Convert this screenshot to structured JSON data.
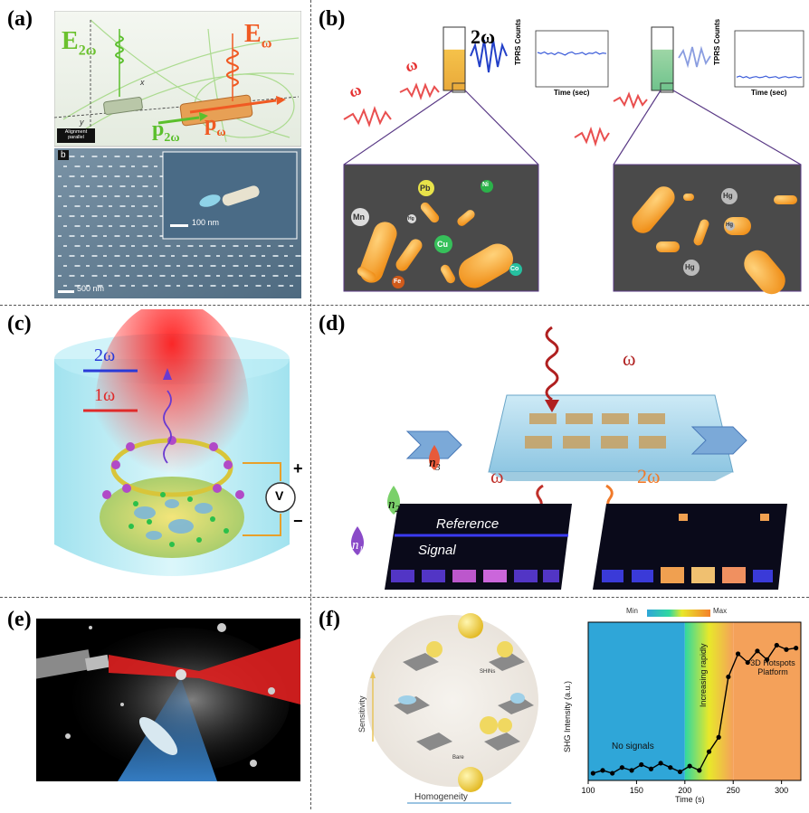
{
  "panels": {
    "a": {
      "label": "(a)",
      "e_2w": "E",
      "e_2w_sub": "2ω",
      "e_w": "E",
      "e_w_sub": "ω",
      "p_2w": "p",
      "p_2w_sub": "2ω",
      "p_w": "p",
      "p_w_sub": "ω",
      "axis_x": "x",
      "axis_y": "y",
      "alignment_tag": "Alignment parallel",
      "sem_tag": "b",
      "scale_main": "500 nm",
      "scale_inset": "100 nm"
    },
    "b": {
      "label": "(b)",
      "omega1": "ω",
      "omega2": "ω",
      "two_omega": "2ω",
      "chart_left_ylabel": "TPRS Counts",
      "chart_left_xlabel": "Time (sec)",
      "chart_right_ylabel": "TPRS Counts",
      "chart_right_xlabel": "Time (sec)",
      "ions_left": [
        "Pb",
        "Ni",
        "Mn",
        "Hg",
        "Cu",
        "Co",
        "Fe"
      ],
      "ions_right": [
        "Hg",
        "Hg",
        "Hg"
      ]
    },
    "c": {
      "label": "(c)",
      "two_omega": "2ω",
      "one_omega": "1ω",
      "plus": "+",
      "minus": "−",
      "volt": "V"
    },
    "d": {
      "label": "(d)",
      "omega_in": "ω",
      "omega_out": "ω",
      "two_omega_out": "2ω",
      "n1": "n",
      "n1_sub": "1",
      "n2": "n",
      "n2_sub": "2",
      "n3": "n",
      "n3_sub": "3",
      "reference": "Reference",
      "signal": "Signal"
    },
    "e": {
      "label": "(e)"
    },
    "f": {
      "label": "(f)",
      "sensitivity": "Sensitivity",
      "homogeneity": "Homogeneity",
      "shins": "SHINs",
      "bare": "Bare",
      "colorbar_min": "Min",
      "colorbar_max": "Max",
      "region_no_signals": "No signals",
      "region_increasing": "Increasing rapidly",
      "region_3d_line1": "3D Hotspots",
      "region_3d_line2": "Platform"
    }
  },
  "chart_data": [
    {
      "type": "line",
      "panel": "b-left",
      "xlabel": "Time (sec)",
      "ylabel": "TPRS Counts",
      "x": [
        0,
        1,
        2,
        3,
        4,
        5,
        6,
        7,
        8,
        9,
        10,
        11,
        12,
        13,
        14,
        15,
        16,
        17,
        18,
        19,
        20
      ],
      "values": [
        0.62,
        0.6,
        0.63,
        0.59,
        0.61,
        0.58,
        0.62,
        0.6,
        0.57,
        0.61,
        0.63,
        0.59,
        0.6,
        0.62,
        0.58,
        0.61,
        0.6,
        0.63,
        0.59,
        0.61,
        0.6
      ],
      "ylim": [
        0,
        1
      ],
      "color": "#3a5bd9"
    },
    {
      "type": "line",
      "panel": "b-right",
      "xlabel": "Time (sec)",
      "ylabel": "TPRS Counts",
      "x": [
        0,
        1,
        2,
        3,
        4,
        5,
        6,
        7,
        8,
        9,
        10,
        11,
        12,
        13,
        14,
        15,
        16,
        17,
        18,
        19,
        20
      ],
      "values": [
        0.15,
        0.17,
        0.14,
        0.16,
        0.13,
        0.15,
        0.16,
        0.14,
        0.15,
        0.17,
        0.14,
        0.15,
        0.16,
        0.13,
        0.15,
        0.16,
        0.14,
        0.15,
        0.16,
        0.14,
        0.15
      ],
      "ylim": [
        0,
        1
      ],
      "color": "#3a5bd9"
    },
    {
      "type": "line",
      "panel": "f",
      "xlabel": "Time (s)",
      "ylabel": "SHG Intensity (a.u.)",
      "x": [
        105,
        115,
        125,
        135,
        145,
        155,
        165,
        175,
        185,
        195,
        205,
        215,
        225,
        235,
        245,
        255,
        265,
        275,
        285,
        295,
        305,
        315
      ],
      "values": [
        0.05,
        0.07,
        0.05,
        0.09,
        0.07,
        0.11,
        0.08,
        0.12,
        0.09,
        0.06,
        0.1,
        0.07,
        0.2,
        0.3,
        0.72,
        0.88,
        0.82,
        0.9,
        0.84,
        0.94,
        0.91,
        0.92
      ],
      "xticks": [
        100,
        150,
        200,
        250,
        300
      ],
      "xlim": [
        100,
        320
      ],
      "ylim": [
        0,
        1.1
      ],
      "regions": [
        {
          "from": 100,
          "to": 200,
          "color": "#2fa6d8"
        },
        {
          "from": 200,
          "to": 250,
          "color": "gradient"
        },
        {
          "from": 250,
          "to": 320,
          "color": "#f4a15a"
        }
      ]
    }
  ]
}
